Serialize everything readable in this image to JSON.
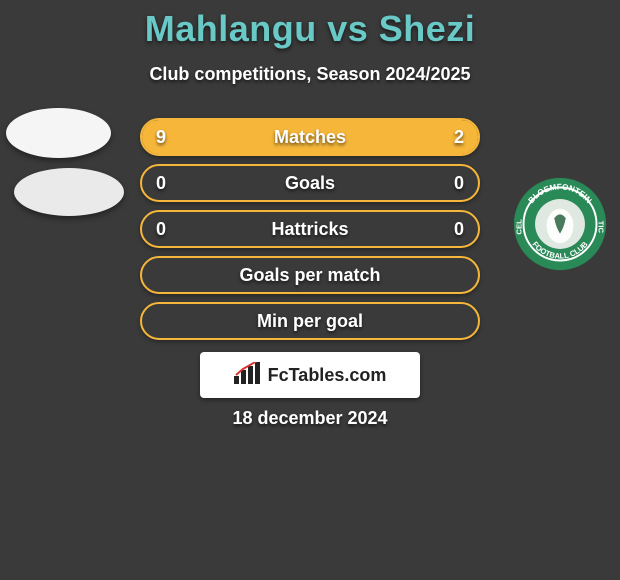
{
  "title_color": "#69c9c7",
  "title": "Mahlangu vs Shezi",
  "subtitle": "Club competitions, Season 2024/2025",
  "bar_border_color": "#f5b63a",
  "fill_color": "#f5b63a",
  "rows": [
    {
      "label": "Matches",
      "left": "9",
      "right": "2",
      "fill_left_pct": 78,
      "fill_right_pct": 22
    },
    {
      "label": "Goals",
      "left": "0",
      "right": "0",
      "fill_left_pct": 0,
      "fill_right_pct": 0
    },
    {
      "label": "Hattricks",
      "left": "0",
      "right": "0",
      "fill_left_pct": 0,
      "fill_right_pct": 0
    },
    {
      "label": "Goals per match",
      "left": "",
      "right": "",
      "fill_left_pct": 0,
      "fill_right_pct": 0
    },
    {
      "label": "Min per goal",
      "left": "",
      "right": "",
      "fill_left_pct": 0,
      "fill_right_pct": 0
    }
  ],
  "logo_text": "FcTables.com",
  "date_text": "18 december 2024",
  "crest": {
    "outer_ring": "#2a8a57",
    "inner_ring": "#ffffff",
    "center": "#dfe8e1",
    "top_text": "BLOEMFONTEIN",
    "bottom_text": "FOOTBALL CLUB",
    "side_text": "CELTIC"
  }
}
